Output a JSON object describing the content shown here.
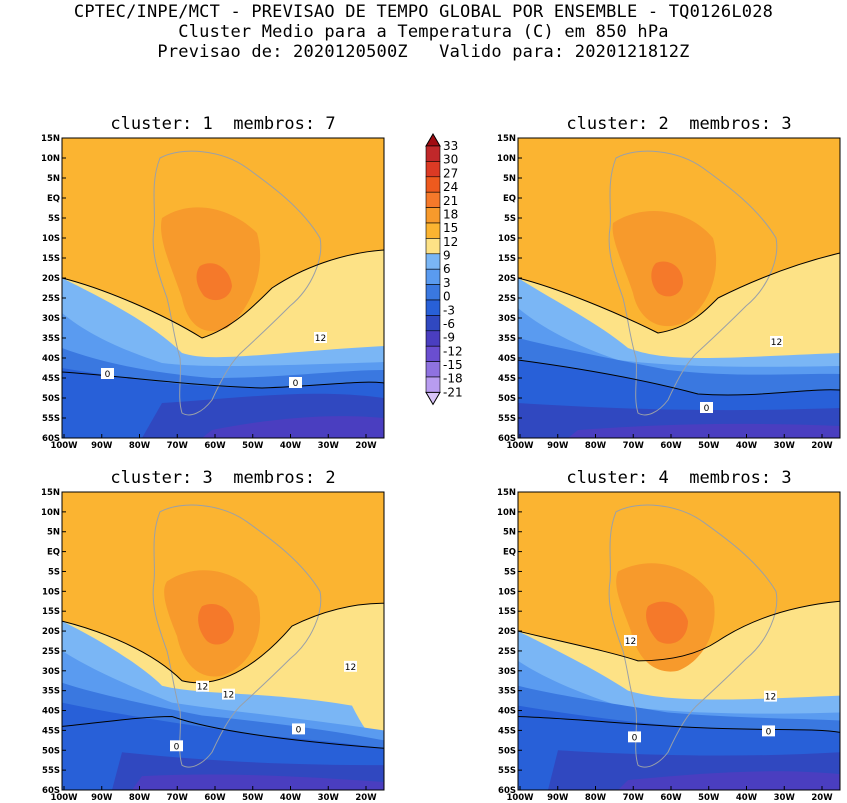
{
  "header": {
    "line1": "CPTEC/INPE/MCT - PREVISAO DE TEMPO GLOBAL POR ENSEMBLE - TQ0126L028",
    "line2": "Cluster Medio para a Temperatura (C) em 850 hPa",
    "line3": "Previsao de: 2020120500Z   Valido para: 2020121812Z"
  },
  "panels": [
    {
      "title": "cluster: 1  membros: 7",
      "contour_labels": [
        "12",
        "0",
        "0"
      ]
    },
    {
      "title": "cluster: 2  membros: 3",
      "contour_labels": [
        "12",
        "0"
      ]
    },
    {
      "title": "cluster: 3  membros: 2",
      "contour_labels": [
        "12",
        "12",
        "12",
        "0",
        "0"
      ]
    },
    {
      "title": "cluster: 4  membros: 3",
      "contour_labels": [
        "12",
        "12",
        "0",
        "0"
      ]
    }
  ],
  "lat_labels": [
    "15N",
    "10N",
    "5N",
    "EQ",
    "5S",
    "10S",
    "15S",
    "20S",
    "25S",
    "30S",
    "35S",
    "40S",
    "45S",
    "50S",
    "55S",
    "60S"
  ],
  "lon_labels": [
    "100W",
    "90W",
    "80W",
    "70W",
    "60W",
    "50W",
    "40W",
    "30W",
    "20W"
  ],
  "colorbar": {
    "labels": [
      "33",
      "30",
      "27",
      "24",
      "21",
      "18",
      "15",
      "12",
      "9",
      "6",
      "3",
      "0",
      "-3",
      "-6",
      "-9",
      "-12",
      "-15",
      "-18",
      "-21"
    ],
    "colors": [
      "#a00c12",
      "#c0282a",
      "#dc3a24",
      "#ee5a1e",
      "#f5792a",
      "#f79a2c",
      "#fbb431",
      "#fde286",
      "#7ab6f5",
      "#5a9bf0",
      "#3a78e0",
      "#2860d8",
      "#3048c0",
      "#4a3ec0",
      "#6a4ed0",
      "#8f72e0",
      "#b89cf0",
      "#d8c4f8"
    ]
  }
}
